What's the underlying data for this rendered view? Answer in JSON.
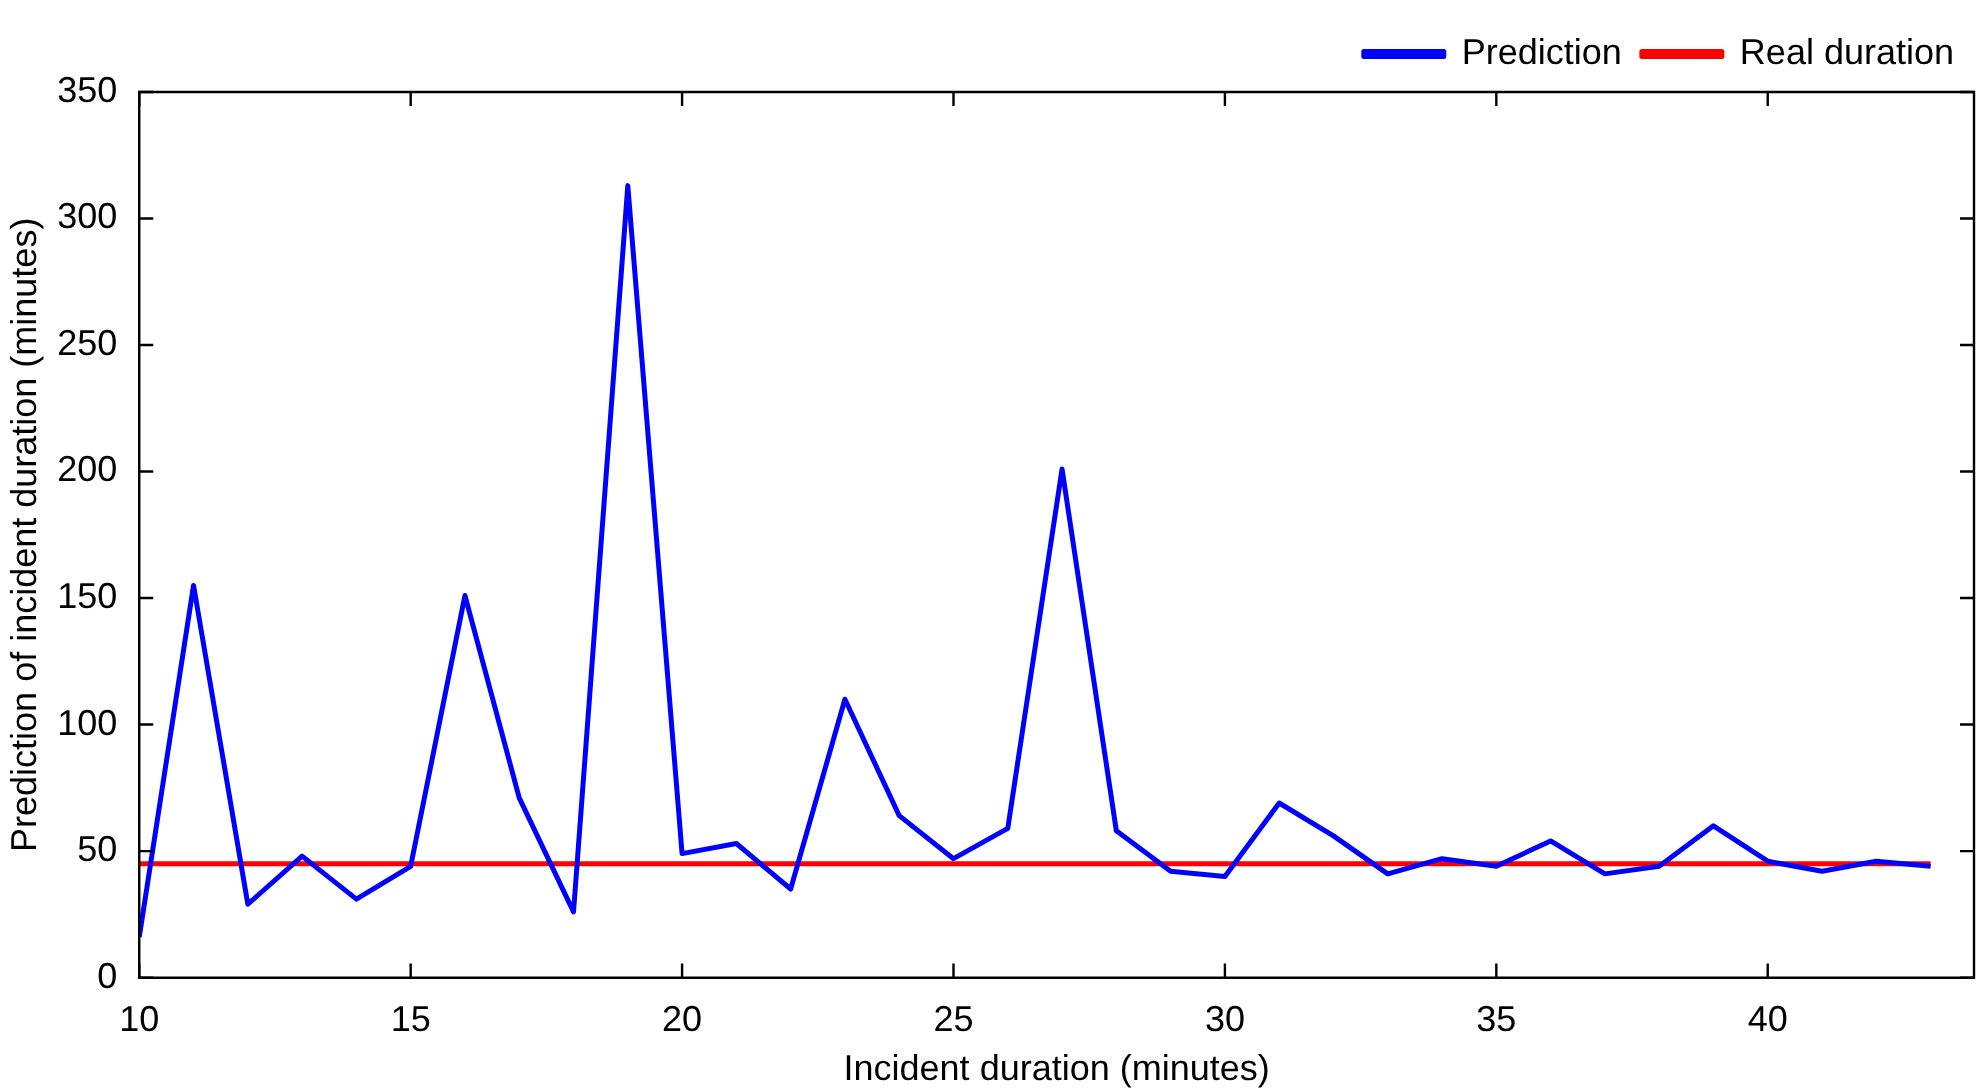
{
  "chart_data": {
    "type": "line",
    "xlabel": "Incident duration (minutes)",
    "ylabel": "Prediction of incident duration (minutes)",
    "x": [
      10,
      11,
      12,
      13,
      14,
      15,
      16,
      17,
      18,
      19,
      20,
      21,
      22,
      23,
      24,
      25,
      26,
      27,
      28,
      29,
      30,
      31,
      32,
      33,
      34,
      35,
      36,
      37,
      38,
      39,
      40,
      41,
      42,
      43
    ],
    "series": [
      {
        "name": "Prediction",
        "color": "#0000ff",
        "values": [
          16,
          155,
          29,
          48,
          31,
          44,
          151,
          71,
          26,
          313,
          49,
          53,
          35,
          110,
          64,
          47,
          59,
          201,
          58,
          42,
          40,
          69,
          56,
          41,
          47,
          44,
          54,
          41,
          44,
          60,
          46,
          42,
          46,
          44
        ]
      },
      {
        "name": "Real duration",
        "color": "#ff0000",
        "values": [
          45,
          45,
          45,
          45,
          45,
          45,
          45,
          45,
          45,
          45,
          45,
          45,
          45,
          45,
          45,
          45,
          45,
          45,
          45,
          45,
          45,
          45,
          45,
          45,
          45,
          45,
          45,
          45,
          45,
          45,
          45,
          45,
          45,
          45
        ]
      }
    ],
    "xlim": [
      10,
      43.8
    ],
    "xticks": [
      10,
      15,
      20,
      25,
      30,
      35,
      40
    ],
    "ylim": [
      0,
      350
    ],
    "yticks": [
      0,
      50,
      100,
      150,
      200,
      250,
      300,
      350
    ],
    "grid": false,
    "legend": "top right",
    "marker": "none",
    "line_style": "solid"
  }
}
